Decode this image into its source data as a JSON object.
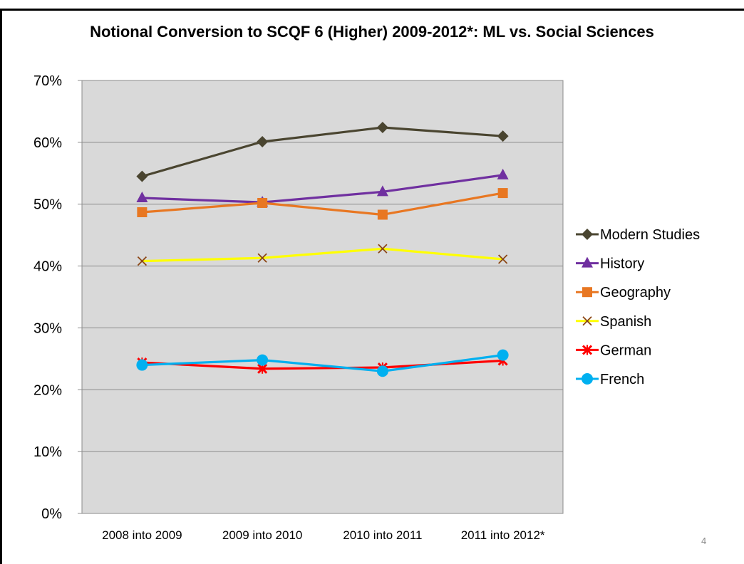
{
  "page_number": "4",
  "chart_data": {
    "type": "line",
    "title": "Notional Conversion to SCQF 6 (Higher) 2009-2012*: ML vs. Social Sciences",
    "xlabel": "",
    "ylabel": "",
    "categories": [
      "2008 into 2009",
      "2009 into 2010",
      "2010 into 2011",
      "2011 into 2012*"
    ],
    "ylim": [
      0,
      0.7
    ],
    "yticks": [
      "0%",
      "10%",
      "20%",
      "30%",
      "40%",
      "50%",
      "60%",
      "70%"
    ],
    "grid": true,
    "legend_position": "right",
    "plot_background": "#d9d9d9",
    "series": [
      {
        "name": "Modern Studies",
        "values": [
          0.545,
          0.601,
          0.624,
          0.61
        ],
        "color": "#4a4530",
        "marker": "diamond"
      },
      {
        "name": "History",
        "values": [
          0.51,
          0.503,
          0.52,
          0.547
        ],
        "color": "#7030a0",
        "marker": "triangle"
      },
      {
        "name": "Geography",
        "values": [
          0.487,
          0.502,
          0.483,
          0.518
        ],
        "color": "#e87722",
        "marker": "square"
      },
      {
        "name": "Spanish",
        "values": [
          0.408,
          0.413,
          0.428,
          0.411
        ],
        "color": "#ffff00",
        "marker": "x",
        "marker_color": "#8b4513"
      },
      {
        "name": "German",
        "values": [
          0.244,
          0.234,
          0.236,
          0.247
        ],
        "color": "#ff0000",
        "marker": "star"
      },
      {
        "name": "French",
        "values": [
          0.24,
          0.248,
          0.23,
          0.256
        ],
        "color": "#00b0f0",
        "marker": "circle"
      }
    ]
  }
}
